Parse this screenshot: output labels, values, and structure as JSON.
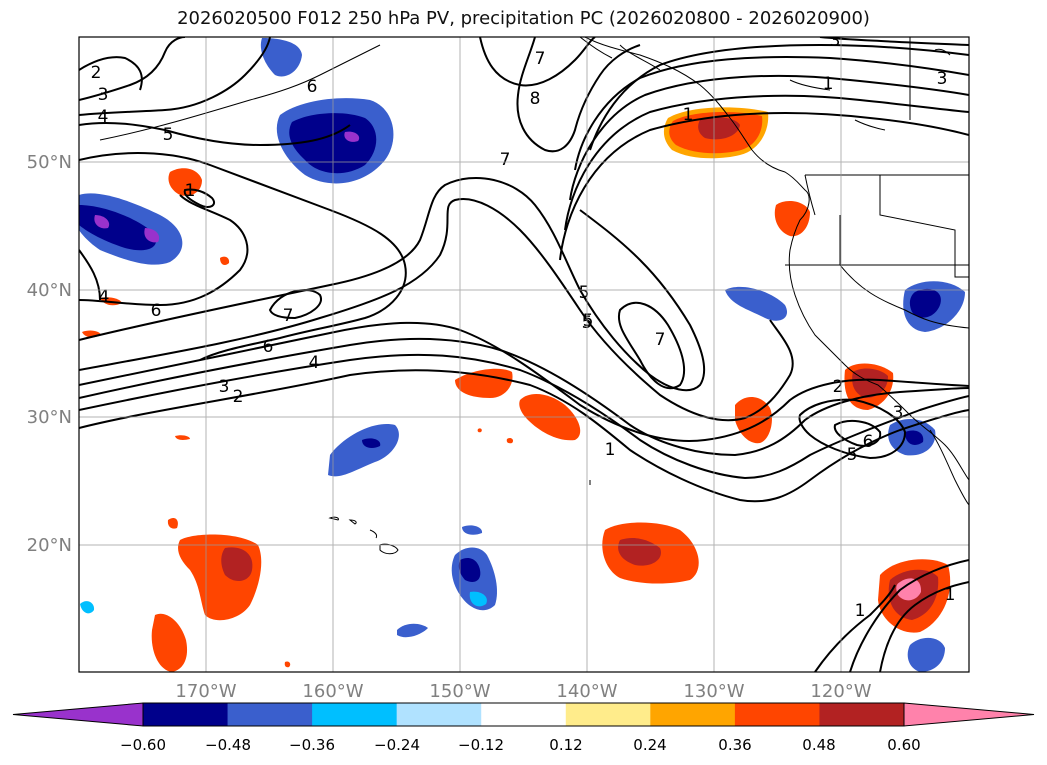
{
  "title": "2026020500 F012 250 hPa PV, precipitation PC (2026020800 - 2026020900)",
  "lat_labels": [
    "50°N",
    "40°N",
    "30°N",
    "20°N"
  ],
  "lon_labels": [
    "170°W",
    "160°W",
    "150°W",
    "140°W",
    "130°W",
    "120°W"
  ],
  "contour_labels": [
    "2",
    "3",
    "4",
    "5",
    "6",
    "7",
    "8",
    "7",
    "5",
    "7",
    "1",
    "3",
    "1",
    "3",
    "1",
    "2",
    "3",
    "4",
    "5",
    "6",
    "7",
    "6",
    "4",
    "3",
    "2",
    "1",
    "5",
    "6",
    "1",
    "1",
    "5"
  ],
  "colorbar": {
    "ticks": [
      "−0.60",
      "−0.48",
      "−0.36",
      "−0.24",
      "−0.12",
      "0.12",
      "0.24",
      "0.36",
      "0.48",
      "0.60"
    ],
    "colors": [
      "#9932cc",
      "#00008b",
      "#3a5fcd",
      "#00bfff",
      "#b0e2ff",
      "#ffffff",
      "#ffec8b",
      "#ffa500",
      "#ff4500",
      "#b22222",
      "#ff82ab"
    ]
  }
}
